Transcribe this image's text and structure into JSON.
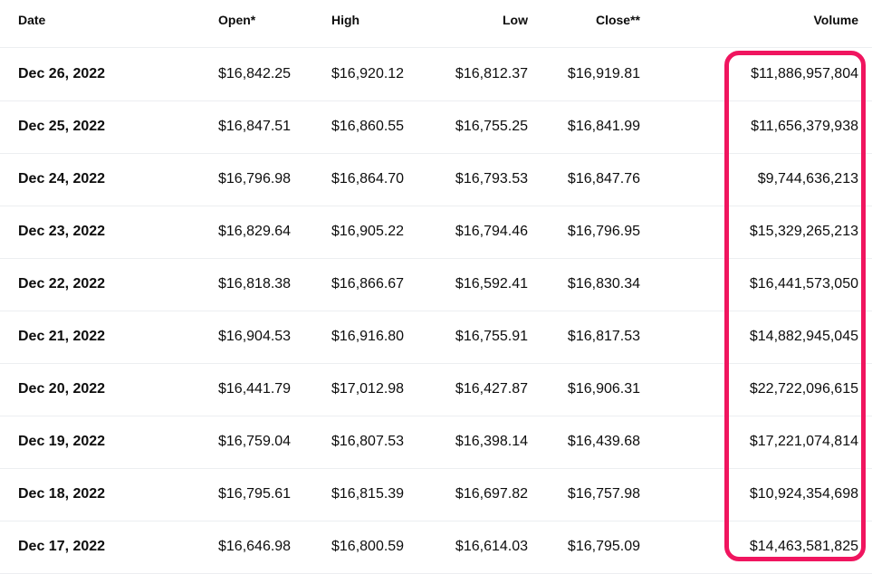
{
  "columns": {
    "date": "Date",
    "open": "Open*",
    "high": "High",
    "low": "Low",
    "close": "Close**",
    "volume": "Volume"
  },
  "rows": [
    {
      "date": "Dec 26, 2022",
      "open": "$16,842.25",
      "high": "$16,920.12",
      "low": "$16,812.37",
      "close": "$16,919.81",
      "volume": "$11,886,957,804"
    },
    {
      "date": "Dec 25, 2022",
      "open": "$16,847.51",
      "high": "$16,860.55",
      "low": "$16,755.25",
      "close": "$16,841.99",
      "volume": "$11,656,379,938"
    },
    {
      "date": "Dec 24, 2022",
      "open": "$16,796.98",
      "high": "$16,864.70",
      "low": "$16,793.53",
      "close": "$16,847.76",
      "volume": "$9,744,636,213"
    },
    {
      "date": "Dec 23, 2022",
      "open": "$16,829.64",
      "high": "$16,905.22",
      "low": "$16,794.46",
      "close": "$16,796.95",
      "volume": "$15,329,265,213"
    },
    {
      "date": "Dec 22, 2022",
      "open": "$16,818.38",
      "high": "$16,866.67",
      "low": "$16,592.41",
      "close": "$16,830.34",
      "volume": "$16,441,573,050"
    },
    {
      "date": "Dec 21, 2022",
      "open": "$16,904.53",
      "high": "$16,916.80",
      "low": "$16,755.91",
      "close": "$16,817.53",
      "volume": "$14,882,945,045"
    },
    {
      "date": "Dec 20, 2022",
      "open": "$16,441.79",
      "high": "$17,012.98",
      "low": "$16,427.87",
      "close": "$16,906.31",
      "volume": "$22,722,096,615"
    },
    {
      "date": "Dec 19, 2022",
      "open": "$16,759.04",
      "high": "$16,807.53",
      "low": "$16,398.14",
      "close": "$16,439.68",
      "volume": "$17,221,074,814"
    },
    {
      "date": "Dec 18, 2022",
      "open": "$16,795.61",
      "high": "$16,815.39",
      "low": "$16,697.82",
      "close": "$16,757.98",
      "volume": "$10,924,354,698"
    },
    {
      "date": "Dec 17, 2022",
      "open": "$16,646.98",
      "high": "$16,800.59",
      "low": "$16,614.03",
      "close": "$16,795.09",
      "volume": "$14,463,581,825"
    }
  ],
  "highlight": {
    "column": "volume",
    "color": "#f0155f"
  }
}
